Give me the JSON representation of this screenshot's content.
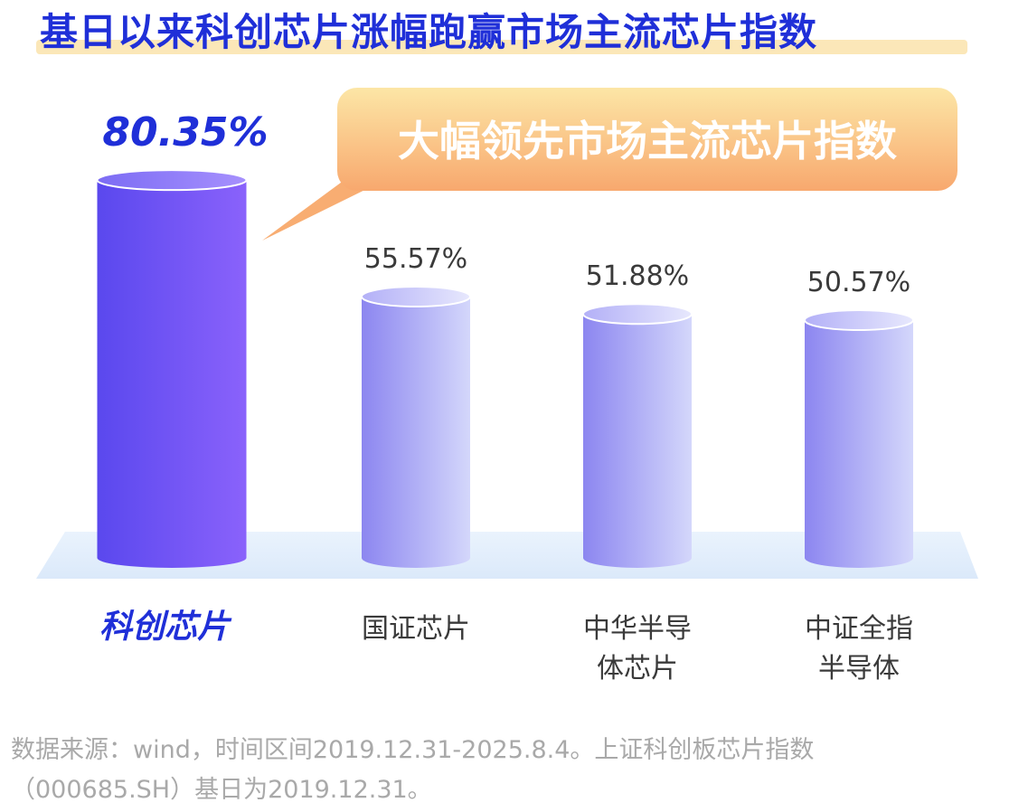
{
  "title": "基日以来科创芯片涨幅跑赢市场主流芯片指数",
  "callout": "大幅领先市场主流芯片指数",
  "chart_data": {
    "type": "bar",
    "categories": [
      [
        "科创芯片"
      ],
      [
        "国证芯片"
      ],
      [
        "中华半导",
        "体芯片"
      ],
      [
        "中证全指",
        "半导体"
      ]
    ],
    "values": [
      80.35,
      55.57,
      51.88,
      50.57
    ],
    "value_labels": [
      "80.35%",
      "55.57%",
      "51.88%",
      "50.57%"
    ],
    "highlight_index": 0,
    "ylim": [
      0,
      100
    ],
    "colors": {
      "highlight_left": "#5a48ee",
      "highlight_right": "#8a62fb",
      "normal_left": "#8c86f0",
      "normal_right": "#d4d7fb",
      "highlight_text": "#1f2fd8",
      "normal_text": "#3a3a3a",
      "floor": "#e3eefb"
    }
  },
  "source": {
    "line1": "数据来源：wind，时间区间2019.12.31-2025.8.4。上证科创板芯片指数",
    "line2": "（000685.SH）基日为2019.12.31。"
  }
}
